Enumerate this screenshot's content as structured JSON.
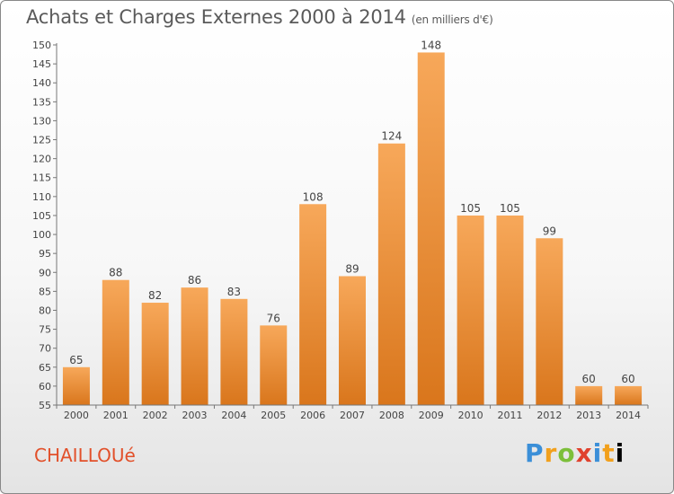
{
  "header": {
    "title": "Achats et Charges Externes 2000 à 2014",
    "unit": "(en milliers d'€)"
  },
  "footer": {
    "place": "CHAILLOUé",
    "brand": "Proxiti"
  },
  "colors": {
    "bar_top": "#f7a85a",
    "bar_bottom": "#d9761c",
    "text": "#444444",
    "place": "#e2502a"
  },
  "chart_data": {
    "type": "bar",
    "title": "Achats et Charges Externes 2000 à 2014",
    "subtitle": "(en milliers d'€)",
    "xlabel": "",
    "ylabel": "",
    "categories": [
      "2000",
      "2001",
      "2002",
      "2003",
      "2004",
      "2005",
      "2006",
      "2007",
      "2008",
      "2009",
      "2010",
      "2011",
      "2012",
      "2013",
      "2014"
    ],
    "values": [
      65,
      88,
      82,
      86,
      83,
      76,
      108,
      89,
      124,
      148,
      105,
      105,
      99,
      60,
      60
    ],
    "ylim": [
      55,
      150
    ],
    "yticks": [
      55,
      60,
      65,
      70,
      75,
      80,
      85,
      90,
      95,
      100,
      105,
      110,
      115,
      120,
      125,
      130,
      135,
      140,
      145,
      150
    ],
    "grid": false,
    "legend": "none",
    "data_labels": true
  }
}
